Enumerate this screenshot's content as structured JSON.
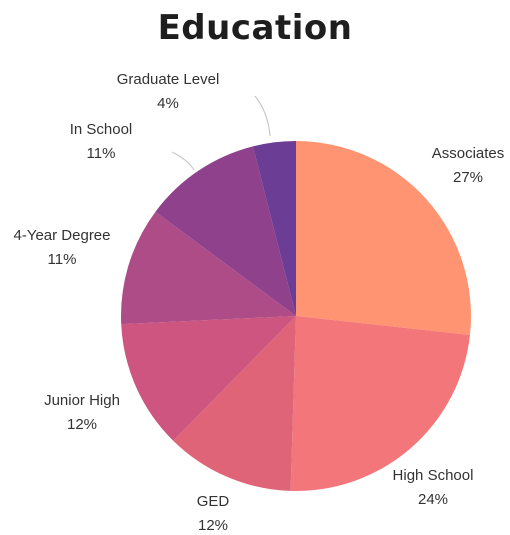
{
  "chart_data": {
    "type": "pie",
    "title": "Education",
    "slices": [
      {
        "label": "Associates",
        "value_label": "27%",
        "value": 27,
        "color": "#ff9472"
      },
      {
        "label": "High School",
        "value_label": "24%",
        "value": 24,
        "color": "#f2767a"
      },
      {
        "label": "GED",
        "value_label": "12%",
        "value": 12,
        "color": "#e06478"
      },
      {
        "label": "Junior High",
        "value_label": "12%",
        "value": 12,
        "color": "#cd5580"
      },
      {
        "label": "4-Year Degree",
        "value_label": "11%",
        "value": 11,
        "color": "#ae4c88"
      },
      {
        "label": "In School",
        "value_label": "11%",
        "value": 11,
        "color": "#8f418c"
      },
      {
        "label": "Graduate Level",
        "value_label": "4%",
        "value": 4,
        "color": "#6b3d95"
      }
    ]
  }
}
